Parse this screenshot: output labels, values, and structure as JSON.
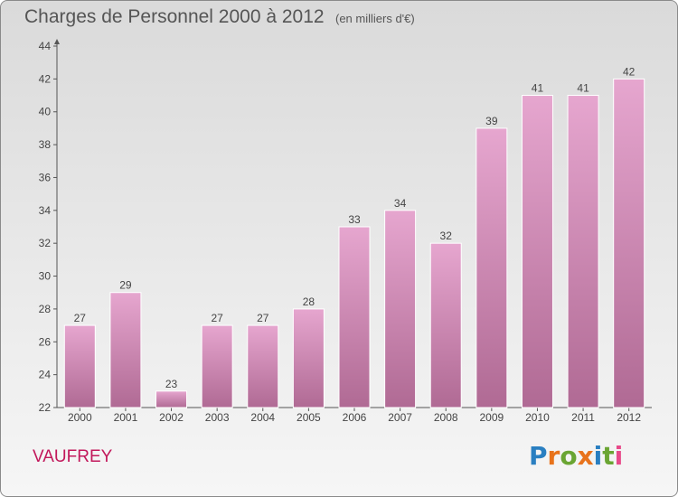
{
  "header": {
    "title": "Charges de Personnel 2000 à 2012",
    "subtitle": "(en milliers d'€)"
  },
  "footer": {
    "commune": "VAUFREY",
    "logo_text": "Proxiti",
    "logo_letters": [
      {
        "ch": "P",
        "color": "#2a7fc1"
      },
      {
        "ch": "r",
        "color": "#e8731c"
      },
      {
        "ch": "o",
        "color": "#6aa533"
      },
      {
        "ch": "x",
        "color": "#e8731c"
      },
      {
        "ch": "i",
        "color": "#2a7fc1"
      },
      {
        "ch": "t",
        "color": "#6aa533"
      },
      {
        "ch": "i",
        "color": "#e84a8a"
      }
    ]
  },
  "chart_data": {
    "type": "bar",
    "categories": [
      "2000",
      "2001",
      "2002",
      "2003",
      "2004",
      "2005",
      "2006",
      "2007",
      "2008",
      "2009",
      "2010",
      "2011",
      "2012"
    ],
    "values": [
      27,
      29,
      23,
      27,
      27,
      28,
      33,
      34,
      32,
      39,
      41,
      41,
      42
    ],
    "ylim": [
      22,
      44
    ],
    "yticks": [
      22,
      24,
      26,
      28,
      30,
      32,
      34,
      36,
      38,
      40,
      42,
      44
    ],
    "grid": false,
    "bar_color_top": "#e6a6cf",
    "bar_color_bottom": "#b06a94"
  }
}
